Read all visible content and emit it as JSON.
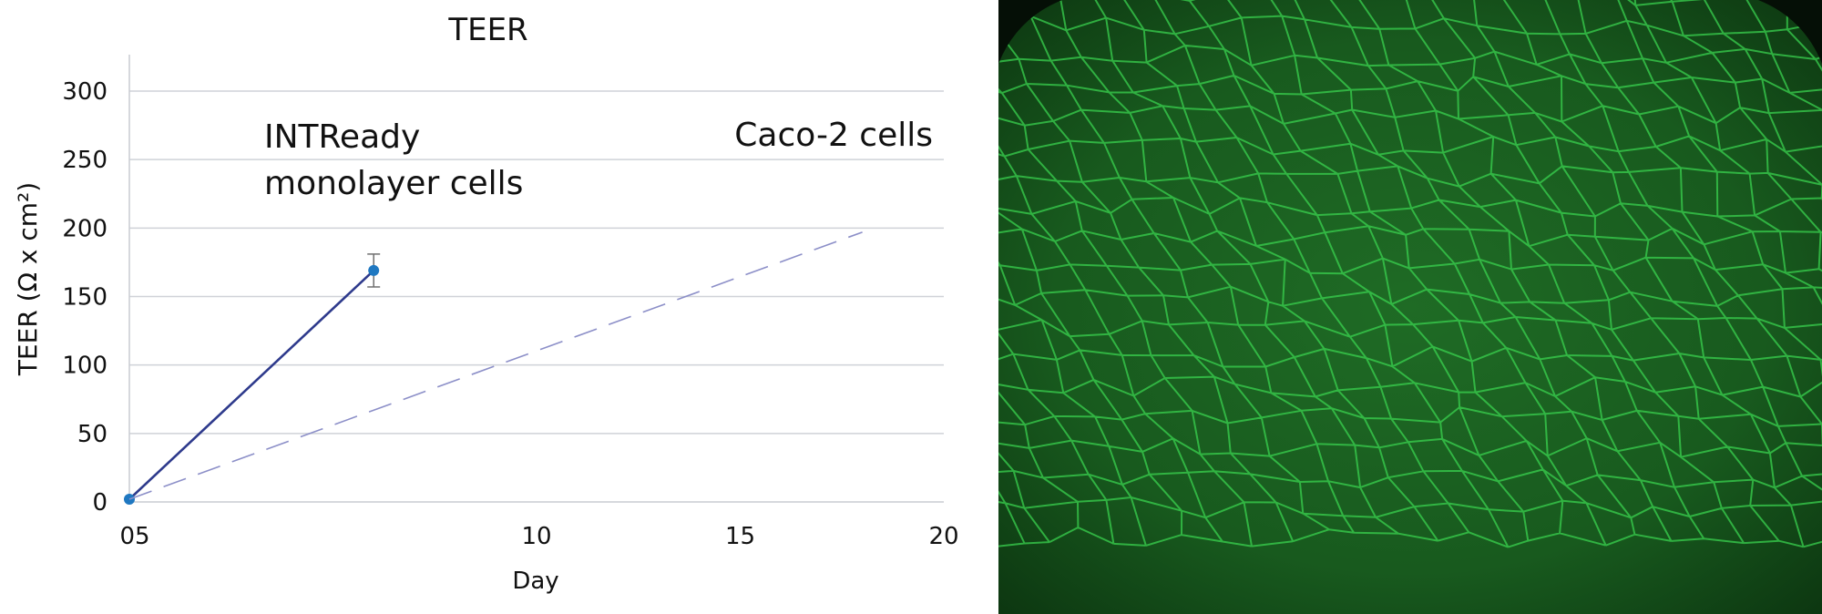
{
  "chart_data": {
    "type": "line",
    "title": "TEER",
    "xlabel": "Day",
    "ylabel": "TEER (Ω x cm²)",
    "xlim": [
      0,
      20
    ],
    "ylim": [
      0,
      300
    ],
    "x_tick_labels": [
      "05",
      "10",
      "15",
      "20"
    ],
    "y_ticks": [
      0,
      50,
      100,
      150,
      200,
      250,
      300
    ],
    "grid": true,
    "series": [
      {
        "name": "INTReady monolayer cells",
        "style": "solid",
        "color": "#2e3a8c",
        "marker_color": "#1f78c1",
        "x": [
          0,
          6
        ],
        "y": [
          2,
          169
        ],
        "error_bars": [
          null,
          12
        ]
      },
      {
        "name": "Caco-2 cells",
        "style": "dashed",
        "color": "#8c8fc8",
        "x": [
          0,
          18
        ],
        "y": [
          2,
          197
        ]
      }
    ],
    "annotations": {
      "intready_line1": "INTReady",
      "intready_line2": "monolayer cells",
      "caco2": "Caco-2 cells"
    }
  },
  "micrograph": {
    "description_icon": "cell-monolayer-image",
    "background_color": "#0b300f",
    "stain_color": "#39d14f"
  }
}
